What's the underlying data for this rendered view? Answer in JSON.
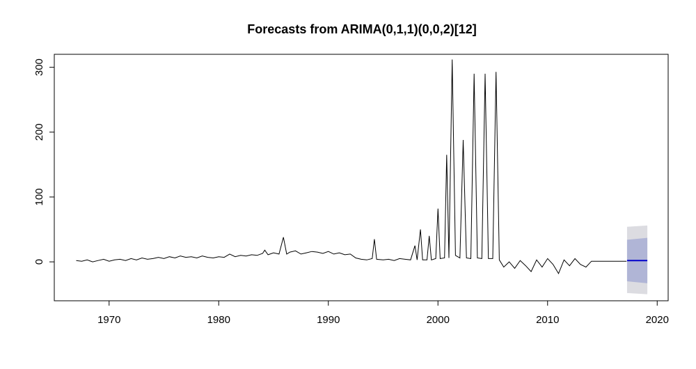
{
  "chart_data": {
    "type": "line",
    "title": "Forecasts from ARIMA(0,1,1)(0,0,2)[12]",
    "xlabel": "",
    "ylabel": "",
    "xlim": [
      1965,
      2021
    ],
    "ylim": [
      -60,
      320
    ],
    "x_ticks": [
      "1970",
      "1980",
      "1990",
      "2000",
      "2010",
      "2020"
    ],
    "y_ticks": [
      "0",
      "100",
      "200",
      "300"
    ],
    "grid": false,
    "colors": {
      "series": "#000000",
      "forecast": "#0000cc",
      "ci80": "#b0b5d6",
      "ci95": "#dcdce1"
    },
    "series": [
      {
        "values": [
          [
            1967.0,
            2
          ],
          [
            1967.5,
            1
          ],
          [
            1968.0,
            3
          ],
          [
            1968.5,
            0
          ],
          [
            1969.0,
            2
          ],
          [
            1969.5,
            4
          ],
          [
            1970.0,
            1
          ],
          [
            1970.5,
            3
          ],
          [
            1971.0,
            4
          ],
          [
            1971.5,
            2
          ],
          [
            1972.0,
            5
          ],
          [
            1972.5,
            3
          ],
          [
            1973.0,
            6
          ],
          [
            1973.5,
            4
          ],
          [
            1974.0,
            5
          ],
          [
            1974.5,
            7
          ],
          [
            1975.0,
            5
          ],
          [
            1975.5,
            8
          ],
          [
            1976.0,
            6
          ],
          [
            1976.5,
            9
          ],
          [
            1977.0,
            7
          ],
          [
            1977.5,
            8
          ],
          [
            1978.0,
            6
          ],
          [
            1978.5,
            9
          ],
          [
            1979.0,
            7
          ],
          [
            1979.5,
            6
          ],
          [
            1980.0,
            8
          ],
          [
            1980.5,
            7
          ],
          [
            1981.0,
            12
          ],
          [
            1981.5,
            8
          ],
          [
            1982.0,
            10
          ],
          [
            1982.5,
            9
          ],
          [
            1983.0,
            11
          ],
          [
            1983.5,
            10
          ],
          [
            1984.0,
            13
          ],
          [
            1984.2,
            18
          ],
          [
            1984.5,
            11
          ],
          [
            1985.0,
            14
          ],
          [
            1985.5,
            12
          ],
          [
            1985.9,
            38
          ],
          [
            1986.2,
            12
          ],
          [
            1986.5,
            15
          ],
          [
            1987.0,
            17
          ],
          [
            1987.5,
            12
          ],
          [
            1988.0,
            14
          ],
          [
            1988.5,
            16
          ],
          [
            1989.0,
            15
          ],
          [
            1989.5,
            13
          ],
          [
            1990.0,
            16
          ],
          [
            1990.5,
            12
          ],
          [
            1991.0,
            14
          ],
          [
            1991.5,
            11
          ],
          [
            1992.0,
            12
          ],
          [
            1992.5,
            6
          ],
          [
            1993.0,
            4
          ],
          [
            1993.5,
            3
          ],
          [
            1994.0,
            5
          ],
          [
            1994.2,
            35
          ],
          [
            1994.4,
            4
          ],
          [
            1995.0,
            3
          ],
          [
            1995.5,
            4
          ],
          [
            1996.0,
            2
          ],
          [
            1996.5,
            5
          ],
          [
            1997.0,
            4
          ],
          [
            1997.5,
            3
          ],
          [
            1997.9,
            25
          ],
          [
            1998.1,
            3
          ],
          [
            1998.4,
            50
          ],
          [
            1998.6,
            3
          ],
          [
            1999.0,
            3
          ],
          [
            1999.2,
            40
          ],
          [
            1999.4,
            3
          ],
          [
            1999.8,
            5
          ],
          [
            2000.0,
            82
          ],
          [
            2000.2,
            5
          ],
          [
            2000.6,
            6
          ],
          [
            2000.8,
            165
          ],
          [
            2001.0,
            6
          ],
          [
            2001.3,
            312
          ],
          [
            2001.6,
            10
          ],
          [
            2002.0,
            6
          ],
          [
            2002.3,
            188
          ],
          [
            2002.6,
            6
          ],
          [
            2003.0,
            5
          ],
          [
            2003.3,
            290
          ],
          [
            2003.6,
            6
          ],
          [
            2004.0,
            5
          ],
          [
            2004.3,
            290
          ],
          [
            2004.6,
            5
          ],
          [
            2005.0,
            5
          ],
          [
            2005.3,
            293
          ],
          [
            2005.6,
            3
          ],
          [
            2006.0,
            -8
          ],
          [
            2006.5,
            0
          ],
          [
            2007.0,
            -10
          ],
          [
            2007.5,
            2
          ],
          [
            2008.0,
            -6
          ],
          [
            2008.5,
            -15
          ],
          [
            2009.0,
            3
          ],
          [
            2009.5,
            -8
          ],
          [
            2010.0,
            5
          ],
          [
            2010.5,
            -4
          ],
          [
            2011.0,
            -18
          ],
          [
            2011.5,
            3
          ],
          [
            2012.0,
            -6
          ],
          [
            2012.5,
            5
          ],
          [
            2013.0,
            -4
          ],
          [
            2013.5,
            -8
          ],
          [
            2014.0,
            1
          ],
          [
            2015.0,
            1
          ],
          [
            2016.0,
            1
          ],
          [
            2017.2,
            1
          ]
        ]
      }
    ],
    "forecast": {
      "x_start": 2017.25,
      "x_end": 2019.1,
      "mean": 2,
      "lo80_start": -30,
      "hi80_start": 34,
      "lo80_end": -33,
      "hi80_end": 37,
      "lo95_start": -48,
      "hi95_start": 54,
      "lo95_end": -50,
      "hi95_end": 56
    }
  }
}
